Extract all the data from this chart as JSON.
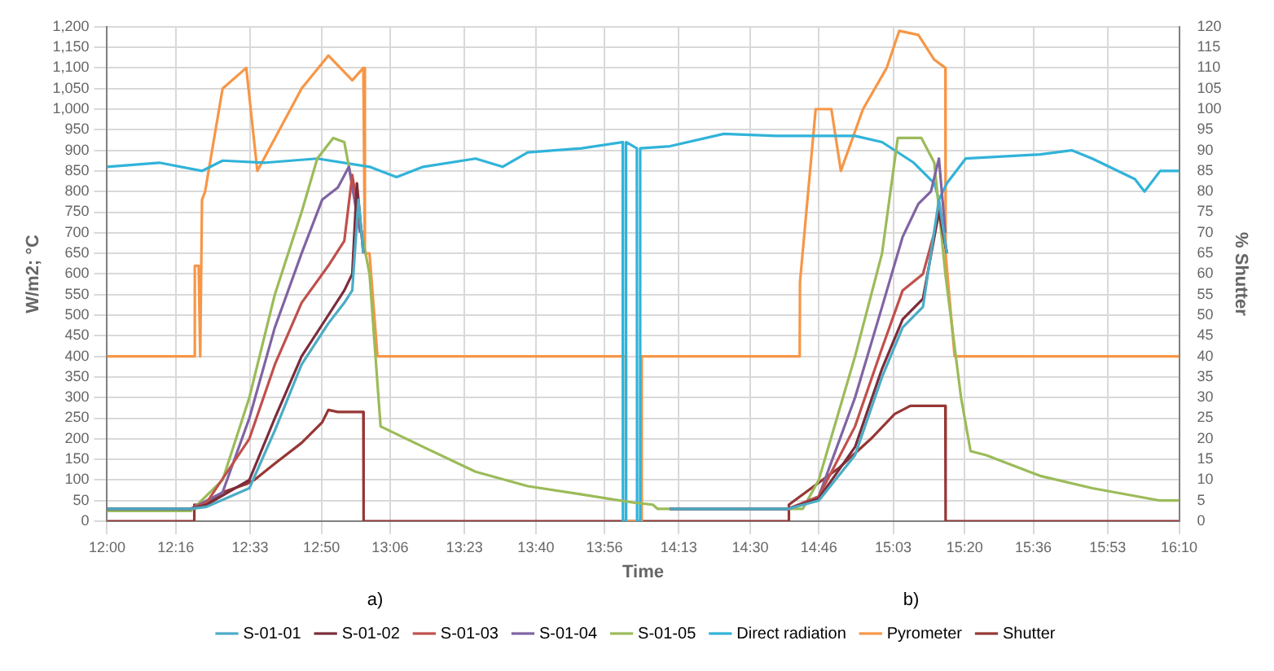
{
  "chart_data": {
    "type": "line",
    "xlabel": "Time",
    "ylabel": "W/m2; °C",
    "y2label": "% Shutter",
    "annotations": [
      "a)",
      "b)"
    ],
    "grid": true,
    "legend": "bottom",
    "marker": "none",
    "line_style": "solid",
    "xlim": [
      12,
      16.1667
    ],
    "xticks": [
      {
        "value": 12,
        "label": "12:00"
      },
      {
        "value": 12.2667,
        "label": "12:16"
      },
      {
        "value": 12.5556,
        "label": "12:33"
      },
      {
        "value": 12.8333,
        "label": "12:50"
      },
      {
        "value": 13.1,
        "label": "13:06"
      },
      {
        "value": 13.3889,
        "label": "13:23"
      },
      {
        "value": 13.6667,
        "label": "13:40"
      },
      {
        "value": 13.9333,
        "label": "13:56"
      },
      {
        "value": 14.2222,
        "label": "14:13"
      },
      {
        "value": 14.5,
        "label": "14:30"
      },
      {
        "value": 14.7667,
        "label": "14:46"
      },
      {
        "value": 15.0556,
        "label": "15:03"
      },
      {
        "value": 15.3333,
        "label": "15:20"
      },
      {
        "value": 15.6,
        "label": "15:36"
      },
      {
        "value": 15.8889,
        "label": "15:53"
      },
      {
        "value": 16.1667,
        "label": "16:10"
      }
    ],
    "ylim": [
      0,
      1200
    ],
    "yticks": [
      0,
      50,
      100,
      150,
      200,
      250,
      300,
      350,
      400,
      450,
      500,
      550,
      600,
      650,
      700,
      750,
      800,
      850,
      900,
      950,
      {
        "value": 1000,
        "label": "1,000"
      },
      {
        "value": 1050,
        "label": "1,050"
      },
      {
        "value": 1100,
        "label": "1,100"
      },
      {
        "value": 1150,
        "label": "1,150"
      },
      {
        "value": 1200,
        "label": "1,200"
      }
    ],
    "y2lim": [
      0,
      120
    ],
    "y2ticks": [
      0,
      5,
      10,
      15,
      20,
      25,
      30,
      35,
      40,
      45,
      50,
      55,
      60,
      65,
      70,
      75,
      80,
      85,
      90,
      95,
      100,
      105,
      110,
      115,
      120
    ],
    "series": [
      {
        "name": "S-01-01",
        "color": "#4bacc6",
        "x": [
          12,
          12.326,
          12.387,
          12.553,
          12.652,
          12.756,
          12.86,
          12.922,
          12.953,
          12.977,
          12.996,
          13.002,
          14.188,
          14.649,
          14.766,
          14.907,
          15.012,
          15.092,
          15.171,
          15.233,
          15.264
        ],
        "values": [
          30,
          30,
          35,
          80,
          220,
          380,
          480,
          530,
          560,
          780,
          650,
          null,
          30,
          30,
          50,
          160,
          350,
          470,
          520,
          780,
          650
        ]
      },
      {
        "name": "S-01-02",
        "color": "#7b2c3a",
        "x": [
          12,
          12.326,
          12.387,
          12.553,
          12.652,
          12.756,
          12.86,
          12.922,
          12.953,
          12.971,
          12.996,
          13.002,
          14.188,
          14.649,
          14.766,
          14.907,
          15.012,
          15.092,
          15.171,
          15.233,
          15.264
        ],
        "values": [
          30,
          30,
          40,
          100,
          250,
          400,
          500,
          560,
          600,
          820,
          650,
          null,
          30,
          30,
          55,
          180,
          370,
          490,
          540,
          750,
          650
        ]
      },
      {
        "name": "S-01-03",
        "color": "#c0504d",
        "x": [
          12,
          12.326,
          12.387,
          12.553,
          12.652,
          12.756,
          12.86,
          12.922,
          12.953,
          12.99,
          13.002,
          14.188,
          14.649,
          14.766,
          14.907,
          15.012,
          15.092,
          15.171,
          15.215,
          15.233,
          15.264
        ],
        "values": [
          30,
          30,
          45,
          200,
          380,
          530,
          620,
          680,
          840,
          700,
          null,
          30,
          30,
          60,
          230,
          420,
          560,
          600,
          700,
          760,
          650
        ]
      },
      {
        "name": "S-01-04",
        "color": "#8064a2",
        "x": [
          12,
          12.326,
          12.449,
          12.553,
          12.652,
          12.756,
          12.836,
          12.897,
          12.94,
          12.983,
          13.002,
          14.188,
          14.649,
          14.766,
          14.907,
          15.012,
          15.092,
          15.153,
          15.202,
          15.233,
          15.258
        ],
        "values": [
          30,
          30,
          70,
          250,
          470,
          650,
          780,
          810,
          860,
          700,
          null,
          30,
          30,
          60,
          300,
          520,
          690,
          770,
          800,
          880,
          700
        ]
      },
      {
        "name": "S-01-05",
        "color": "#9bbb59",
        "x": [
          12,
          12.326,
          12.449,
          12.553,
          12.652,
          12.756,
          12.817,
          12.879,
          12.922,
          12.94,
          13.02,
          13.063,
          13.229,
          13.432,
          13.635,
          13.844,
          14.047,
          14.121,
          14.139,
          14.704,
          14.766,
          14.907,
          15.012,
          15.073,
          15.165,
          15.215,
          15.258,
          15.319,
          15.356,
          15.417,
          15.626,
          15.829,
          16.093,
          16.1667
        ],
        "values": [
          25,
          25,
          100,
          300,
          550,
          750,
          880,
          930,
          920,
          860,
          600,
          230,
          180,
          120,
          85,
          65,
          45,
          40,
          30,
          30,
          100,
          400,
          650,
          930,
          930,
          870,
          600,
          300,
          170,
          160,
          110,
          80,
          50,
          50
        ]
      },
      {
        "name": "Direct radiation",
        "color": "#31b3d9",
        "x": [
          12,
          12.203,
          12.369,
          12.449,
          12.615,
          12.817,
          13.02,
          13.125,
          13.229,
          13.432,
          13.537,
          13.635,
          13.844,
          14.004,
          14.005,
          14.016,
          14.017,
          14.059,
          14.06,
          14.071,
          14.072,
          14.188,
          14.397,
          14.6,
          14.907,
          15.012,
          15.135,
          15.215,
          15.233,
          15.264,
          15.337,
          15.626,
          15.749,
          15.829,
          15.995,
          16.032,
          16.093,
          16.1667
        ],
        "values": [
          860,
          870,
          850,
          875,
          870,
          880,
          860,
          835,
          860,
          880,
          860,
          895,
          905,
          920,
          0,
          0,
          920,
          905,
          0,
          0,
          905,
          910,
          940,
          935,
          935,
          920,
          870,
          820,
          780,
          820,
          880,
          890,
          900,
          880,
          830,
          800,
          850,
          850
        ]
      },
      {
        "name": "Pyrometer",
        "color": "#f79646",
        "x": [
          12,
          12.338,
          12.341,
          12.356,
          12.362,
          12.369,
          12.381,
          12.449,
          12.541,
          12.584,
          12.756,
          12.86,
          12.953,
          12.996,
          13.002,
          13.02,
          13.051,
          14.016,
          14.017,
          14.077,
          14.078,
          14.692,
          14.693,
          14.754,
          14.815,
          14.852,
          14.938,
          15.03,
          15.079,
          15.153,
          15.215,
          15.258,
          15.259,
          15.294,
          16.1667
        ],
        "values": [
          400,
          400,
          620,
          620,
          400,
          780,
          800,
          1050,
          1100,
          850,
          1050,
          1130,
          1070,
          1100,
          650,
          650,
          400,
          400,
          0,
          0,
          400,
          400,
          580,
          1000,
          1000,
          850,
          1000,
          1100,
          1190,
          1180,
          1120,
          1100,
          650,
          400,
          400
        ]
      },
      {
        "name": "Shutter",
        "color": "#953735",
        "axis": "y2",
        "x": [
          12,
          12.338,
          12.339,
          12.387,
          12.449,
          12.541,
          12.572,
          12.652,
          12.756,
          12.836,
          12.86,
          12.897,
          12.996,
          12.997,
          14.649,
          14.65,
          14.846,
          14.969,
          15.061,
          15.122,
          15.258,
          15.259,
          16.1667
        ],
        "values": [
          0,
          0,
          4,
          4,
          7,
          9,
          10,
          14,
          19,
          24,
          27,
          26.5,
          26.5,
          0,
          0,
          4,
          13,
          20,
          26,
          28,
          28,
          0,
          0
        ]
      }
    ]
  }
}
